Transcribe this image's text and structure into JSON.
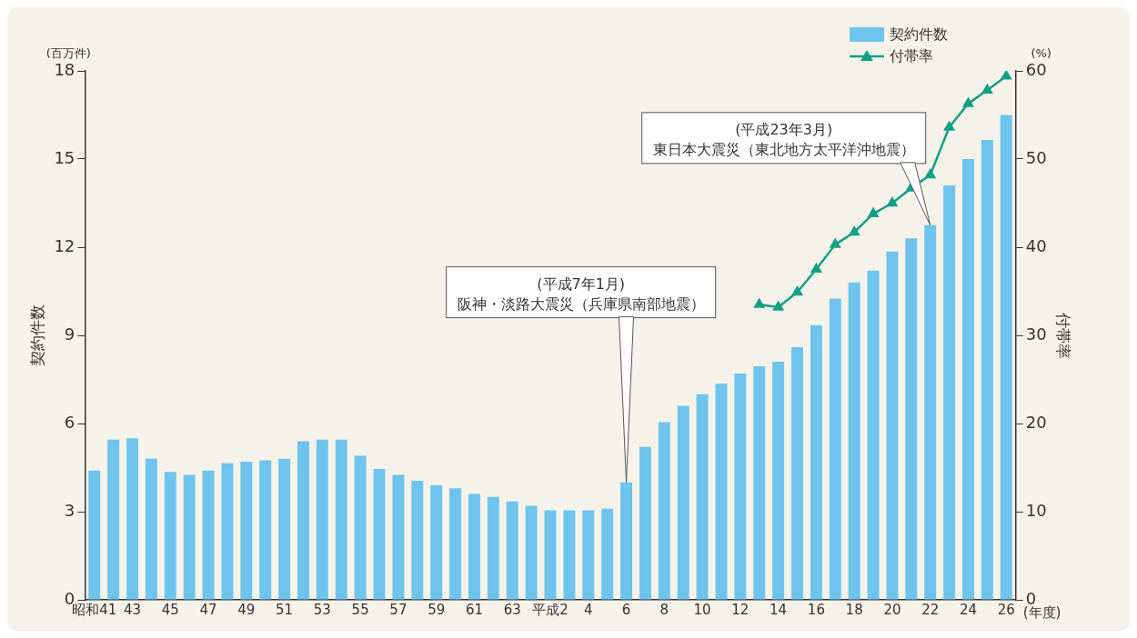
{
  "chart_data": {
    "type": "bar",
    "xlabel": "(年度)",
    "ylabel": "契約件数",
    "y2label": "付帯率",
    "categories": [
      "昭和41",
      null,
      "43",
      null,
      "45",
      null,
      "47",
      null,
      "49",
      null,
      "51",
      null,
      "53",
      null,
      "55",
      null,
      "57",
      null,
      "59",
      null,
      "61",
      null,
      "63",
      null,
      "平成2",
      null,
      "4",
      null,
      "6",
      null,
      "8",
      null,
      "10",
      null,
      "12",
      null,
      "14",
      null,
      "16",
      null,
      "18",
      null,
      "20",
      null,
      "22",
      null,
      "24",
      null,
      "26"
    ],
    "series": [
      {
        "name": "契約件数",
        "color": "#6ec4ec",
        "values": [
          4.4,
          5.45,
          5.5,
          4.8,
          4.35,
          4.25,
          4.4,
          4.65,
          4.7,
          4.75,
          4.8,
          5.4,
          5.45,
          5.45,
          4.9,
          4.45,
          4.25,
          4.05,
          3.9,
          3.8,
          3.6,
          3.5,
          3.35,
          3.2,
          3.05,
          3.05,
          3.05,
          3.1,
          4.0,
          5.2,
          6.05,
          6.6,
          7.0,
          7.35,
          7.7,
          7.95,
          8.1,
          8.6,
          9.35,
          10.25,
          10.8,
          11.2,
          11.85,
          12.3,
          12.75,
          14.1,
          15.0,
          15.65,
          16.5
        ]
      },
      {
        "name": "付帯率",
        "type": "line",
        "axis": "y2",
        "color": "#14a085",
        "marker": "triangle",
        "values": [
          null,
          null,
          null,
          null,
          null,
          null,
          null,
          null,
          null,
          null,
          null,
          null,
          null,
          null,
          null,
          null,
          null,
          null,
          null,
          null,
          null,
          null,
          null,
          null,
          null,
          null,
          null,
          null,
          null,
          null,
          null,
          null,
          null,
          null,
          null,
          33.5,
          33.2,
          34.9,
          37.5,
          40.3,
          41.7,
          43.8,
          45.0,
          46.7,
          48.2,
          53.6,
          56.3,
          57.8,
          59.4
        ]
      }
    ],
    "ylim": [
      0,
      18
    ],
    "yticks": [
      0,
      3,
      6,
      9,
      12,
      15,
      18
    ],
    "y2lim": [
      0,
      60
    ],
    "y2ticks": [
      0,
      10,
      20,
      30,
      40,
      50,
      60
    ],
    "legend": "top right",
    "annotations": [
      "(百万件)",
      "(%)",
      {
        "text": "(平成7年1月)\n阪神・淡路大震災（兵庫県南部地震）",
        "x": "6",
        "y": 4.0
      },
      {
        "text": "(平成23年3月)\n東日本大震災（東北地方太平洋沖地震）",
        "x": "22",
        "y": 12.75
      }
    ]
  }
}
